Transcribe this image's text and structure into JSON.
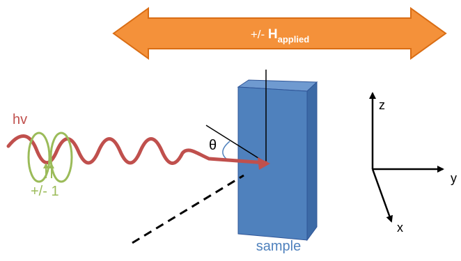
{
  "field": {
    "prefix": "+/- ",
    "symbol": "H",
    "subscript": "applied",
    "fill_color": "#F4913A",
    "stroke_color": "#D96D14"
  },
  "light": {
    "label": "hv",
    "color": "#C0504D"
  },
  "helicity": {
    "label": "+/- 1",
    "color": "#9BBB59"
  },
  "angle": {
    "label": "θ"
  },
  "sample": {
    "label": "sample",
    "front_color": "#4F81BD",
    "top_color": "#6F9AD0",
    "side_color": "#3C6AA6",
    "label_color": "#4F81BD"
  },
  "axes": {
    "z": "z",
    "y": "y",
    "x": "x"
  }
}
